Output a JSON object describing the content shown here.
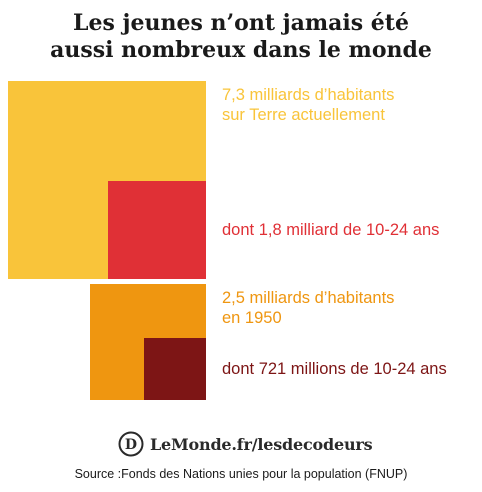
{
  "title_lines": [
    "Les jeunes n’ont jamais été",
    "aussi nombreux dans le monde"
  ],
  "chart_data": {
    "type": "nested-squares",
    "unit": "milliards d’habitants",
    "groups": [
      {
        "total": {
          "value": 7.3,
          "label_lines": [
            "7,3 milliards d’habitants",
            "sur Terre actuellement"
          ],
          "color": "#f9c43a"
        },
        "youth": {
          "value": 1.8,
          "label": "dont 1,8 milliard de 10-24 ans",
          "color": "#e03036"
        }
      },
      {
        "total": {
          "value": 2.5,
          "label_lines": [
            "2,5 milliards d’habitants",
            "en 1950"
          ],
          "color": "#ef9610"
        },
        "youth": {
          "value": 0.721,
          "label": "dont 721 millions de 10-24 ans",
          "color": "#7d1515"
        }
      }
    ]
  },
  "brand": {
    "text": "LeMonde.fr/lesdecodeurs",
    "logo_letter": "D",
    "logo_icon": "le-monde-decodeurs-logo"
  },
  "source": "Source :Fonds des Nations unies pour la population (FNUP)"
}
